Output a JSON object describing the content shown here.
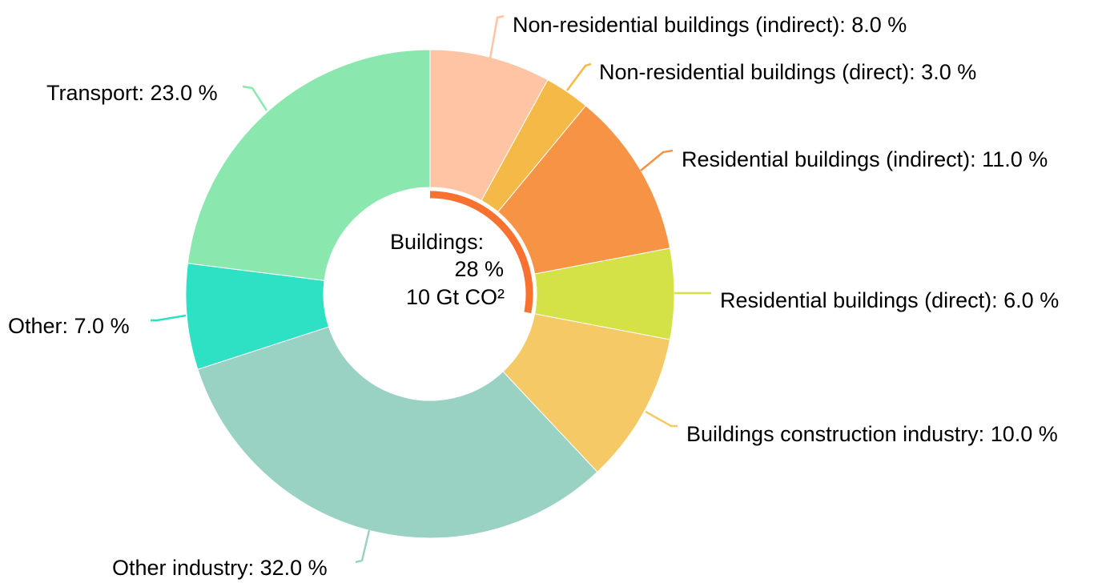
{
  "chart_data": {
    "type": "pie",
    "variant": "donut",
    "start_angle_deg": 0,
    "direction": "clockwise",
    "slices": [
      {
        "name": "Non-residential buildings (indirect)",
        "value": 8.0,
        "label": "Non-residential buildings (indirect): 8.0 %",
        "color": "#FFC4A4"
      },
      {
        "name": "Non-residential buildings (direct)",
        "value": 3.0,
        "label": "Non-residential buildings (direct): 3.0 %",
        "color": "#F5B947"
      },
      {
        "name": "Residential buildings (indirect)",
        "value": 11.0,
        "label": "Residential buildings (indirect): 11.0 %",
        "color": "#F79345"
      },
      {
        "name": "Residential buildings (direct)",
        "value": 6.0,
        "label": "Residential buildings (direct): 6.0 %",
        "color": "#D4E147"
      },
      {
        "name": "Buildings construction industry",
        "value": 10.0,
        "label": "Buildings construction industry: 10.0 %",
        "color": "#F5CA66"
      },
      {
        "name": "Other industry",
        "value": 32.0,
        "label": "Other industry: 32.0 %",
        "color": "#99D1C3"
      },
      {
        "name": "Other",
        "value": 7.0,
        "label": "Other: 7.0 %",
        "color": "#2EE0C4"
      },
      {
        "name": "Transport",
        "value": 23.0,
        "label": "Transport: 23.0 %",
        "color": "#8AE8AE"
      }
    ],
    "center": {
      "line1": "Buildings:",
      "line2": "28 %",
      "line3": "10 Gt CO²"
    },
    "highlight_arc": {
      "value": 28,
      "color": "#F97130"
    }
  }
}
